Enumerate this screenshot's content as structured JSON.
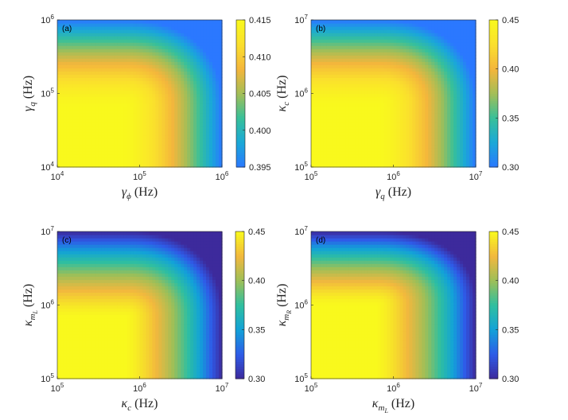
{
  "chart_data": [
    {
      "type": "heatmap",
      "panel_label": "(a)",
      "x_label": {
        "sym": "γ",
        "sub": "ϕ",
        "unit": "(Hz)"
      },
      "y_label": {
        "sym": "γ",
        "sub": "q",
        "unit": "(Hz)"
      },
      "x_scale": "log",
      "y_scale": "log",
      "x_range": [
        10000,
        1000000
      ],
      "y_range": [
        10000,
        1000000
      ],
      "x_ticks": [
        {
          "base": "10",
          "exp": "4"
        },
        {
          "base": "10",
          "exp": "5"
        },
        {
          "base": "10",
          "exp": "6"
        }
      ],
      "y_ticks": [
        {
          "base": "10",
          "exp": "4"
        },
        {
          "base": "10",
          "exp": "5"
        },
        {
          "base": "10",
          "exp": "6"
        }
      ],
      "colorbar": {
        "range": [
          0.395,
          0.415
        ],
        "ticks": [
          "0.395",
          "0.400",
          "0.405",
          "0.410",
          "0.415"
        ],
        "palette": "parula-upper"
      },
      "x_knee_frac": 0.72,
      "y_knee_frac": 0.72
    },
    {
      "type": "heatmap",
      "panel_label": "(b)",
      "x_label": {
        "sym": "γ",
        "sub": "q",
        "unit": "(Hz)"
      },
      "y_label": {
        "sym": "κ",
        "sub": "c",
        "unit": "(Hz)"
      },
      "x_scale": "log",
      "y_scale": "log",
      "x_range": [
        100000,
        10000000
      ],
      "y_range": [
        100000,
        10000000
      ],
      "x_ticks": [
        {
          "base": "10",
          "exp": "5"
        },
        {
          "base": "10",
          "exp": "6"
        },
        {
          "base": "10",
          "exp": "7"
        }
      ],
      "y_ticks": [
        {
          "base": "10",
          "exp": "5"
        },
        {
          "base": "10",
          "exp": "6"
        },
        {
          "base": "10",
          "exp": "7"
        }
      ],
      "colorbar": {
        "range": [
          0.3,
          0.45
        ],
        "ticks": [
          "0.30",
          "0.35",
          "0.40",
          "0.45"
        ],
        "palette": "parula-upper"
      },
      "x_knee_frac": 0.74,
      "y_knee_frac": 0.74
    },
    {
      "type": "heatmap",
      "panel_label": "(c)",
      "x_label": {
        "sym": "κ",
        "sub": "c",
        "unit": "(Hz)"
      },
      "y_label": {
        "sym": "κ",
        "sub": "m",
        "subsub": "L",
        "unit": "(Hz)"
      },
      "x_scale": "log",
      "y_scale": "log",
      "x_range": [
        100000,
        10000000
      ],
      "y_range": [
        100000,
        10000000
      ],
      "x_ticks": [
        {
          "base": "10",
          "exp": "5"
        },
        {
          "base": "10",
          "exp": "6"
        },
        {
          "base": "10",
          "exp": "7"
        }
      ],
      "y_ticks": [
        {
          "base": "10",
          "exp": "5"
        },
        {
          "base": "10",
          "exp": "6"
        },
        {
          "base": "10",
          "exp": "7"
        }
      ],
      "colorbar": {
        "range": [
          0.3,
          0.45
        ],
        "ticks": [
          "0.30",
          "0.35",
          "0.40",
          "0.45"
        ],
        "palette": "parula-full"
      },
      "x_knee_frac": 0.74,
      "y_knee_frac": 0.74
    },
    {
      "type": "heatmap",
      "panel_label": "(d)",
      "x_label": {
        "sym": "κ",
        "sub": "m",
        "subsub": "L",
        "unit": "(Hz)"
      },
      "y_label": {
        "sym": "κ",
        "sub": "m",
        "subsub": "R",
        "unit": "(Hz)"
      },
      "x_scale": "log",
      "y_scale": "log",
      "x_range": [
        100000,
        10000000
      ],
      "y_range": [
        100000,
        10000000
      ],
      "x_ticks": [
        {
          "base": "10",
          "exp": "5"
        },
        {
          "base": "10",
          "exp": "6"
        },
        {
          "base": "10",
          "exp": "7"
        }
      ],
      "y_ticks": [
        {
          "base": "10",
          "exp": "5"
        },
        {
          "base": "10",
          "exp": "6"
        },
        {
          "base": "10",
          "exp": "7"
        }
      ],
      "colorbar": {
        "range": [
          0.3,
          0.45
        ],
        "ticks": [
          "0.30",
          "0.35",
          "0.40",
          "0.45"
        ],
        "palette": "parula-full"
      },
      "x_knee_frac": 0.7,
      "y_knee_frac": 0.9
    }
  ]
}
